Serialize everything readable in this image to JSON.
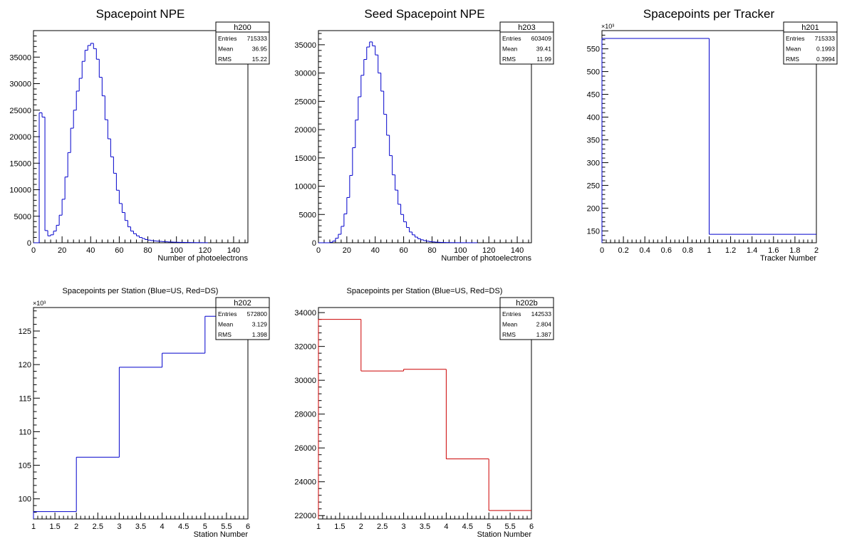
{
  "chart_data": [
    {
      "id": "h200",
      "type": "histogram",
      "title": "Spacepoint NPE",
      "xlabel": "Number of photoelectrons",
      "ylabel": "",
      "xlim": [
        0,
        150
      ],
      "ylim": [
        0,
        40000
      ],
      "xticks": [
        "0",
        "20",
        "40",
        "60",
        "80",
        "100",
        "120",
        "140"
      ],
      "yticks": [
        "0",
        "5000",
        "10000",
        "15000",
        "20000",
        "25000",
        "30000",
        "35000"
      ],
      "line_color": "#0000cc",
      "stats": {
        "name": "h200",
        "entries_label": "Entries",
        "entries": "715333",
        "mean_label": "Mean",
        "mean": "36.95",
        "rms_label": "RMS",
        "rms": "15.22"
      },
      "bin_width": 2,
      "x": [
        0,
        2,
        4,
        6,
        8,
        10,
        12,
        14,
        16,
        18,
        20,
        22,
        24,
        26,
        28,
        30,
        32,
        34,
        36,
        38,
        40,
        42,
        44,
        46,
        48,
        50,
        52,
        54,
        56,
        58,
        60,
        62,
        64,
        66,
        68,
        70,
        72,
        74,
        76,
        78,
        80,
        82,
        84,
        86,
        88,
        90,
        92,
        94,
        96,
        98,
        100,
        102,
        104,
        106,
        108,
        110,
        112,
        114,
        116,
        118,
        120
      ],
      "values": [
        0,
        0,
        24500,
        23700,
        2300,
        1300,
        1500,
        2200,
        3300,
        5200,
        8200,
        12400,
        17000,
        21600,
        25000,
        28600,
        31000,
        34200,
        36300,
        37200,
        37600,
        36600,
        34600,
        31200,
        27700,
        23200,
        19600,
        16200,
        13100,
        9900,
        7400,
        5700,
        4200,
        3000,
        2200,
        1700,
        1300,
        1000,
        800,
        600,
        500,
        420,
        350,
        300,
        260,
        220,
        180,
        150,
        130,
        110,
        90,
        80,
        70,
        60,
        50,
        40,
        30,
        25,
        20,
        15,
        10
      ]
    },
    {
      "id": "h203",
      "type": "histogram",
      "title": "Seed Spacepoint NPE",
      "xlabel": "Number of photoelectrons",
      "ylabel": "",
      "xlim": [
        0,
        150
      ],
      "ylim": [
        0,
        37500
      ],
      "xticks": [
        "0",
        "20",
        "40",
        "60",
        "80",
        "100",
        "120",
        "140"
      ],
      "yticks": [
        "0",
        "5000",
        "10000",
        "15000",
        "20000",
        "25000",
        "30000",
        "35000"
      ],
      "line_color": "#0000cc",
      "stats": {
        "name": "h203",
        "entries_label": "Entries",
        "entries": "603409",
        "mean_label": "Mean",
        "mean": "39.41",
        "rms_label": "RMS",
        "rms": "11.99"
      },
      "bin_width": 2,
      "x": [
        0,
        2,
        4,
        6,
        8,
        10,
        12,
        14,
        16,
        18,
        20,
        22,
        24,
        26,
        28,
        30,
        32,
        34,
        36,
        38,
        40,
        42,
        44,
        46,
        48,
        50,
        52,
        54,
        56,
        58,
        60,
        62,
        64,
        66,
        68,
        70,
        72,
        74,
        76,
        78,
        80,
        82,
        84,
        86,
        88,
        90,
        92,
        94,
        96,
        98,
        100,
        102,
        104,
        106,
        108,
        110
      ],
      "values": [
        0,
        0,
        0,
        0,
        80,
        300,
        800,
        1500,
        2900,
        5100,
        8000,
        11900,
        16800,
        21700,
        25800,
        29600,
        32400,
        34600,
        35500,
        34800,
        33200,
        30000,
        26800,
        22700,
        19000,
        15400,
        12000,
        9300,
        6800,
        5000,
        3700,
        2700,
        1900,
        1400,
        1000,
        700,
        520,
        380,
        280,
        200,
        150,
        110,
        80,
        60,
        45,
        35,
        25,
        20,
        15,
        12,
        9,
        7,
        5,
        4,
        3,
        2
      ]
    },
    {
      "id": "h201",
      "type": "histogram",
      "title": "Spacepoints per Tracker",
      "xlabel": "Tracker Number",
      "ylabel": "",
      "y_exponent": "×10³",
      "xlim": [
        0,
        2
      ],
      "ylim": [
        124,
        590
      ],
      "xticks": [
        "0",
        "0.2",
        "0.4",
        "0.6",
        "0.8",
        "1",
        "1.2",
        "1.4",
        "1.6",
        "1.8",
        "2"
      ],
      "yticks": [
        "150",
        "200",
        "250",
        "300",
        "350",
        "400",
        "450",
        "500",
        "550"
      ],
      "line_color": "#0000cc",
      "stats": {
        "name": "h201",
        "entries_label": "Entries",
        "entries": "715333",
        "mean_label": "Mean",
        "mean": "0.1993",
        "rms_label": "RMS",
        "rms": "0.3994"
      },
      "bin_width": 1,
      "x": [
        0,
        1
      ],
      "values": [
        572.8,
        142.5
      ]
    },
    {
      "id": "h202",
      "type": "histogram",
      "title": "Spacepoints per Station (Blue=US, Red=DS)",
      "xlabel": "Station Number",
      "ylabel": "",
      "y_exponent": "×10³",
      "xlim": [
        1,
        6
      ],
      "ylim": [
        97,
        128.5
      ],
      "xticks": [
        "1",
        "1.5",
        "2",
        "2.5",
        "3",
        "3.5",
        "4",
        "4.5",
        "5",
        "5.5",
        "6"
      ],
      "yticks": [
        "100",
        "105",
        "110",
        "115",
        "120",
        "125"
      ],
      "line_color": "#0000cc",
      "stats": {
        "name": "h202",
        "entries_label": "Entries",
        "entries": "572800",
        "mean_label": "Mean",
        "mean": "3.129",
        "rms_label": "RMS",
        "rms": "1.398"
      },
      "bin_width": 1,
      "x": [
        1,
        2,
        3,
        4,
        5
      ],
      "values": [
        98.1,
        106.2,
        119.6,
        121.7,
        127.2
      ]
    },
    {
      "id": "h202b",
      "type": "histogram",
      "title": "Spacepoints per Station (Blue=US, Red=DS)",
      "xlabel": "Station Number",
      "ylabel": "",
      "xlim": [
        1,
        6
      ],
      "ylim": [
        21800,
        34300
      ],
      "xticks": [
        "1",
        "1.5",
        "2",
        "2.5",
        "3",
        "3.5",
        "4",
        "4.5",
        "5",
        "5.5",
        "6"
      ],
      "yticks": [
        "22000",
        "24000",
        "26000",
        "28000",
        "30000",
        "32000",
        "34000"
      ],
      "line_color": "#cc0000",
      "stats": {
        "name": "h202b",
        "entries_label": "Entries",
        "entries": "142533",
        "mean_label": "Mean",
        "mean": "2.804",
        "rms_label": "RMS",
        "rms": "1.387"
      },
      "bin_width": 1,
      "x": [
        1,
        2,
        3,
        4,
        5
      ],
      "values": [
        33600,
        30550,
        30650,
        25350,
        22300
      ]
    }
  ]
}
